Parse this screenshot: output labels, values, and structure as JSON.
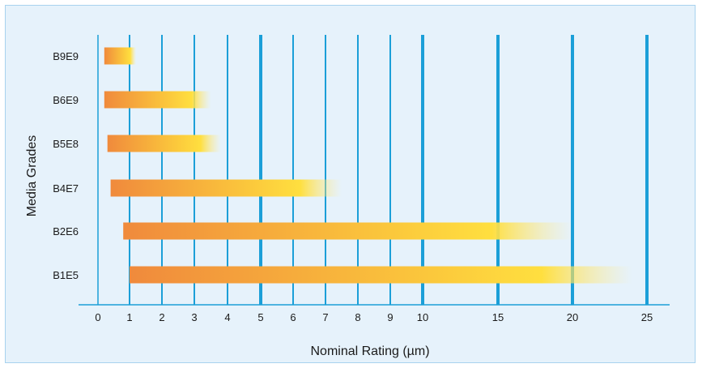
{
  "chart_data": {
    "type": "bar",
    "orientation": "horizontal",
    "title": "",
    "xlabel": "Nominal Rating (µm)",
    "ylabel": "Media Grades",
    "x_ticks": [
      0,
      1,
      2,
      3,
      4,
      5,
      6,
      7,
      8,
      9,
      10,
      15,
      20,
      25
    ],
    "x_tick_labels": [
      "0",
      "1",
      "2",
      "3",
      "4",
      "5",
      "6",
      "7",
      "8",
      "9",
      "10",
      "15",
      "20",
      "25"
    ],
    "categories": [
      "B9E9",
      "B6E9",
      "B5E8",
      "B4E7",
      "B2E6",
      "B1E5"
    ],
    "ranges": [
      {
        "grade": "B9E9",
        "min": 0.2,
        "max": 1.2
      },
      {
        "grade": "B6E9",
        "min": 0.2,
        "max": 3.5
      },
      {
        "grade": "B5E8",
        "min": 0.3,
        "max": 3.8
      },
      {
        "grade": "B4E7",
        "min": 0.4,
        "max": 7.5
      },
      {
        "grade": "B2E6",
        "min": 0.8,
        "max": 20
      },
      {
        "grade": "B1E5",
        "min": 1,
        "max": 24
      }
    ],
    "grid": true,
    "colors": {
      "background": "#e6f2fb",
      "gridline": "#1b9fd8",
      "axis": "#1b9fd8",
      "bar_start": "#f08a3c",
      "bar_end": "#ffdf3f"
    }
  }
}
